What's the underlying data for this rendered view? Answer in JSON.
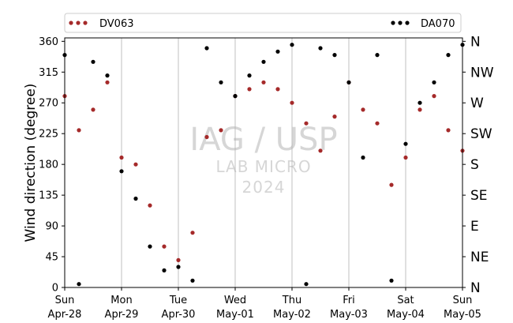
{
  "chart_data": {
    "type": "scatter",
    "title": "",
    "ylabel": "Wind direction (degree)",
    "xlabel": "",
    "ylim": [
      0,
      365
    ],
    "y_ticks": [
      0,
      45,
      90,
      135,
      180,
      225,
      270,
      315,
      360
    ],
    "compass_labels": [
      {
        "value": 0,
        "label": "N"
      },
      {
        "value": 45,
        "label": "NE"
      },
      {
        "value": 90,
        "label": "E"
      },
      {
        "value": 135,
        "label": "SE"
      },
      {
        "value": 180,
        "label": "S"
      },
      {
        "value": 225,
        "label": "SW"
      },
      {
        "value": 270,
        "label": "W"
      },
      {
        "value": 315,
        "label": "NW"
      },
      {
        "value": 360,
        "label": "N"
      }
    ],
    "xlim": [
      "2024-04-28",
      "2024-05-05"
    ],
    "x_ticks": [
      {
        "date": "2024-04-28",
        "day": "Sun",
        "label": "Apr-28"
      },
      {
        "date": "2024-04-29",
        "day": "Mon",
        "label": "Apr-29"
      },
      {
        "date": "2024-04-30",
        "day": "Tue",
        "label": "Apr-30"
      },
      {
        "date": "2024-05-01",
        "day": "Wed",
        "label": "May-01"
      },
      {
        "date": "2024-05-02",
        "day": "Thu",
        "label": "May-02"
      },
      {
        "date": "2024-05-03",
        "day": "Fri",
        "label": "May-03"
      },
      {
        "date": "2024-05-04",
        "day": "Sat",
        "label": "May-04"
      },
      {
        "date": "2024-05-05",
        "day": "Sun",
        "label": "May-05"
      }
    ],
    "grid": "vertical",
    "legend_position": "top",
    "watermark": {
      "line1": "IAG / USP",
      "line2": "LAB MICRO",
      "line3": "2024"
    },
    "series": [
      {
        "name": "DV063",
        "color": "#a52a2a",
        "x_dates": [
          "2024-04-28T00:00",
          "2024-04-28T06:00",
          "2024-04-28T12:00",
          "2024-04-28T18:00",
          "2024-04-29T00:00",
          "2024-04-29T06:00",
          "2024-04-29T12:00",
          "2024-04-29T18:00",
          "2024-04-30T00:00",
          "2024-04-30T06:00",
          "2024-04-30T12:00",
          "2024-04-30T18:00",
          "2024-05-01T00:00",
          "2024-05-01T06:00",
          "2024-05-01T12:00",
          "2024-05-01T18:00",
          "2024-05-02T00:00",
          "2024-05-02T06:00",
          "2024-05-02T12:00",
          "2024-05-02T18:00",
          "2024-05-03T00:00",
          "2024-05-03T06:00",
          "2024-05-03T12:00",
          "2024-05-03T18:00",
          "2024-05-04T00:00",
          "2024-05-04T06:00",
          "2024-05-04T12:00",
          "2024-05-04T18:00",
          "2024-05-05T00:00"
        ],
        "values": [
          280,
          230,
          260,
          300,
          190,
          180,
          120,
          60,
          40,
          80,
          220,
          230,
          280,
          290,
          300,
          290,
          270,
          240,
          200,
          250,
          300,
          260,
          240,
          150,
          190,
          260,
          280,
          230,
          200
        ]
      },
      {
        "name": "DA070",
        "color": "#000000",
        "x_dates": [
          "2024-04-28T00:00",
          "2024-04-28T06:00",
          "2024-04-28T12:00",
          "2024-04-28T18:00",
          "2024-04-29T00:00",
          "2024-04-29T06:00",
          "2024-04-29T12:00",
          "2024-04-29T18:00",
          "2024-04-30T00:00",
          "2024-04-30T06:00",
          "2024-04-30T12:00",
          "2024-04-30T18:00",
          "2024-05-01T00:00",
          "2024-05-01T06:00",
          "2024-05-01T12:00",
          "2024-05-01T18:00",
          "2024-05-02T00:00",
          "2024-05-02T06:00",
          "2024-05-02T12:00",
          "2024-05-02T18:00",
          "2024-05-03T00:00",
          "2024-05-03T06:00",
          "2024-05-03T12:00",
          "2024-05-03T18:00",
          "2024-05-04T00:00",
          "2024-05-04T06:00",
          "2024-05-04T12:00",
          "2024-05-04T18:00",
          "2024-05-05T00:00"
        ],
        "values": [
          340,
          5,
          330,
          310,
          170,
          130,
          60,
          25,
          30,
          10,
          350,
          300,
          280,
          310,
          330,
          345,
          355,
          5,
          350,
          340,
          300,
          190,
          340,
          10,
          210,
          270,
          300,
          340,
          355
        ]
      }
    ]
  }
}
